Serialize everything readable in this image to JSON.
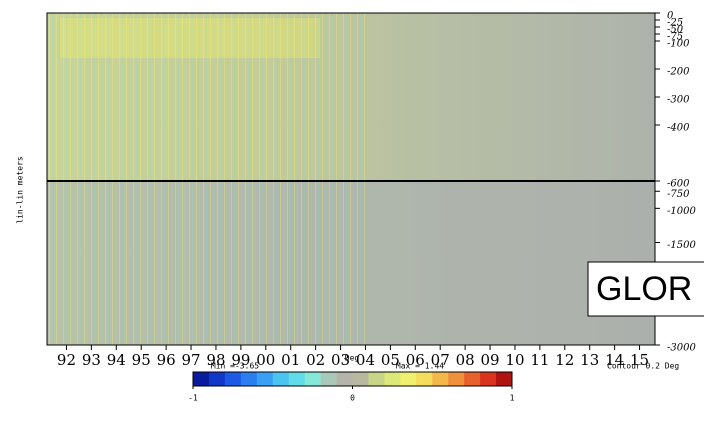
{
  "chart_data": {
    "type": "section",
    "ylabel": "lin-lin meters",
    "ylim": [
      0,
      -3000
    ],
    "ybreak": -600,
    "yticks": [
      0,
      -25,
      -50,
      -75,
      -100,
      -200,
      -300,
      -400,
      -600,
      -750,
      -1000,
      -1500,
      -3000
    ],
    "categories": [
      "92",
      "93",
      "94",
      "95",
      "96",
      "97",
      "98",
      "99",
      "00",
      "01",
      "02",
      "03",
      "04",
      "05",
      "06",
      "07",
      "08",
      "09",
      "10",
      "11",
      "12",
      "13",
      "14",
      "15"
    ],
    "colorbar": {
      "label": "Deg",
      "min_label": "Min =-3.65",
      "max_label": "Max = 1.44",
      "lim": [
        -1,
        1
      ],
      "ticks": [
        -1,
        0,
        1
      ],
      "colors": [
        "#0a1c9e",
        "#1238c8",
        "#1c5ae6",
        "#2a7ef0",
        "#3aa0f4",
        "#4cc4f0",
        "#62dce8",
        "#86e8d8",
        "#a8c8b8",
        "#b4b4a8",
        "#b8b8a0",
        "#c8d488",
        "#dce878",
        "#f0f070",
        "#f4dc5c",
        "#f4b84a",
        "#f0903c",
        "#e8602c",
        "#d8341e",
        "#b01410"
      ]
    },
    "contour_note": "Contour 0.2 Deg",
    "overlay_label": "GLOR"
  }
}
